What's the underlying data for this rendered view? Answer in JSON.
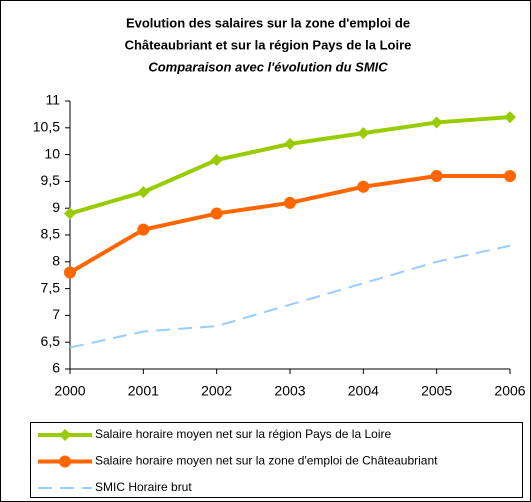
{
  "chart_data": {
    "type": "line",
    "title": "Evolution des salaires sur la zone d'emploi de",
    "subtitle": "Châteaubriant et sur la région Pays de la Loire",
    "subtitle2": "Comparaison avec l'évolution du SMIC",
    "x": [
      2000,
      2001,
      2002,
      2003,
      2004,
      2005,
      2006
    ],
    "xlim": [
      2000,
      2006
    ],
    "xticks": [
      2000,
      2001,
      2002,
      2003,
      2004,
      2005,
      2006
    ],
    "ylim": [
      6,
      11
    ],
    "yticks": [
      6,
      {
        "value": 6.5,
        "label": "6,5"
      },
      7,
      {
        "value": 7.5,
        "label": "7,5"
      },
      8,
      {
        "value": 8.5,
        "label": "8,5"
      },
      9,
      {
        "value": 9.5,
        "label": "9,5"
      },
      10,
      {
        "value": 10.5,
        "label": "10,5"
      },
      11
    ],
    "grid": false,
    "series": [
      {
        "name": "Salaire horaire moyen net sur la région Pays de la Loire",
        "color": "#99cc00",
        "marker": "diamond",
        "dash": false,
        "values": [
          8.9,
          9.3,
          9.9,
          10.2,
          10.4,
          10.6,
          10.7
        ]
      },
      {
        "name": "Salaire horaire moyen net sur la zone d'emploi de Châteaubriant",
        "color": "#ff6600",
        "marker": "circle",
        "dash": false,
        "values": [
          7.8,
          8.6,
          8.9,
          9.1,
          9.4,
          9.6,
          9.6
        ]
      },
      {
        "name": "SMIC Horaire brut",
        "color": "#99ccff",
        "marker": "none",
        "dash": true,
        "values": [
          6.4,
          6.7,
          6.8,
          7.2,
          7.6,
          8.0,
          8.3
        ]
      }
    ]
  }
}
